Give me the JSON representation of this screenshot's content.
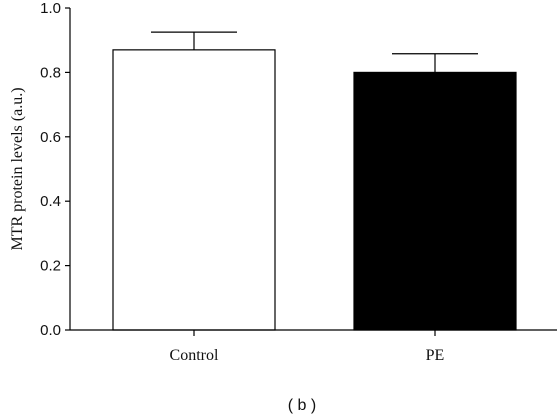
{
  "chart_data": {
    "type": "bar",
    "categories": [
      "Control",
      "PE"
    ],
    "values": [
      0.87,
      0.8
    ],
    "errors": [
      0.055,
      0.058
    ],
    "bar_colors": [
      "#ffffff",
      "#000000"
    ],
    "title": "",
    "xlabel": "",
    "ylabel": "MTR protein levels (a.u.)",
    "ylim": [
      0,
      1.0
    ],
    "yticks": [
      "0.0",
      "0.2",
      "0.4",
      "0.6",
      "0.8",
      "1.0"
    ],
    "grid": false,
    "panel_label": "( b )"
  }
}
